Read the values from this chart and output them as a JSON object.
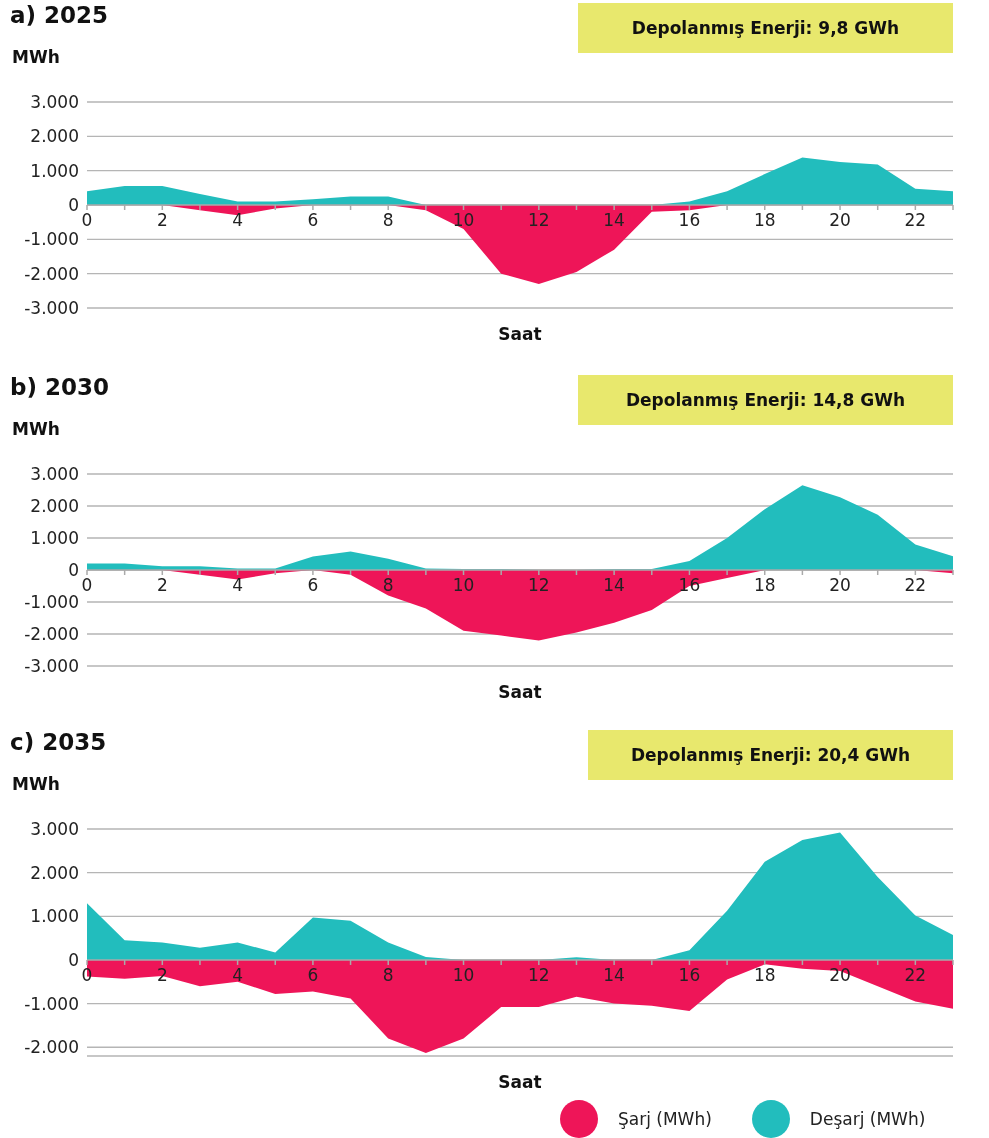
{
  "chart_data": [
    {
      "type": "area",
      "title": "a) 2025",
      "ylabel": "MWh",
      "xlabel": "Saat",
      "annotations": [
        "Depolanmış Enerji: 9,8 GWh"
      ],
      "x": [
        0,
        1,
        2,
        3,
        4,
        5,
        6,
        7,
        8,
        9,
        10,
        11,
        12,
        13,
        14,
        15,
        16,
        17,
        18,
        19,
        20,
        21,
        22,
        23
      ],
      "series": [
        {
          "color": "#ee1558",
          "values": [
            0,
            0,
            0,
            -150,
            -300,
            -100,
            0,
            0,
            0,
            -150,
            -700,
            -2000,
            -2300,
            -1950,
            -1300,
            -200,
            -150,
            0,
            0,
            0,
            0,
            0,
            0,
            0
          ]
        },
        {
          "color": "#22bdbd",
          "values": [
            400,
            550,
            550,
            320,
            100,
            100,
            170,
            250,
            250,
            0,
            0,
            0,
            0,
            0,
            0,
            0,
            100,
            400,
            900,
            1380,
            1250,
            1180,
            470,
            400
          ]
        }
      ],
      "xlim": [
        0,
        23
      ],
      "xticks": [
        0,
        {
          "value": 1,
          "label": null
        },
        2,
        {
          "value": 3,
          "label": null
        },
        4,
        {
          "value": 5,
          "label": null
        },
        6,
        {
          "value": 7,
          "label": null
        },
        8,
        {
          "value": 9,
          "label": null
        },
        10,
        {
          "value": 11,
          "label": null
        },
        12,
        {
          "value": 13,
          "label": null
        },
        14,
        {
          "value": 15,
          "label": null
        },
        16,
        {
          "value": 17,
          "label": null
        },
        18,
        {
          "value": 19,
          "label": null
        },
        20,
        {
          "value": 21,
          "label": null
        },
        22,
        {
          "value": 23,
          "label": null
        }
      ],
      "ylim": [
        -3000,
        3000
      ],
      "yticks": [
        {
          "value": -3000,
          "label": "-3.000"
        },
        {
          "value": -2000,
          "label": "-2.000"
        },
        {
          "value": -1000,
          "label": "-1.000"
        },
        {
          "value": 0,
          "label": "0"
        },
        {
          "value": 1000,
          "label": "1.000"
        },
        {
          "value": 2000,
          "label": "2.000"
        },
        {
          "value": 3000,
          "label": "3.000"
        }
      ],
      "grid": "y"
    },
    {
      "type": "area",
      "title": "b) 2030",
      "ylabel": "MWh",
      "xlabel": "Saat",
      "annotations": [
        "Depolanmış Enerji: 14,8 GWh"
      ],
      "x": [
        0,
        1,
        2,
        3,
        4,
        5,
        6,
        7,
        8,
        9,
        10,
        11,
        12,
        13,
        14,
        15,
        16,
        17,
        18,
        19,
        20,
        21,
        22,
        23
      ],
      "series": [
        {
          "color": "#ee1558",
          "values": [
            0,
            0,
            0,
            -150,
            -300,
            -100,
            0,
            -150,
            -800,
            -1200,
            -1900,
            -2050,
            -2200,
            -1950,
            -1650,
            -1250,
            -500,
            -250,
            0,
            0,
            0,
            0,
            0,
            -100
          ]
        },
        {
          "color": "#22bdbd",
          "values": [
            200,
            200,
            120,
            120,
            50,
            50,
            420,
            580,
            350,
            50,
            30,
            30,
            0,
            0,
            30,
            30,
            280,
            1000,
            1900,
            2650,
            2270,
            1730,
            800,
            430
          ]
        }
      ],
      "xlim": [
        0,
        23
      ],
      "xticks": [
        0,
        {
          "value": 1,
          "label": null
        },
        2,
        {
          "value": 3,
          "label": null
        },
        4,
        {
          "value": 5,
          "label": null
        },
        6,
        {
          "value": 7,
          "label": null
        },
        8,
        {
          "value": 9,
          "label": null
        },
        10,
        {
          "value": 11,
          "label": null
        },
        12,
        {
          "value": 13,
          "label": null
        },
        14,
        {
          "value": 15,
          "label": null
        },
        16,
        {
          "value": 17,
          "label": null
        },
        18,
        {
          "value": 19,
          "label": null
        },
        20,
        {
          "value": 21,
          "label": null
        },
        22,
        {
          "value": 23,
          "label": null
        }
      ],
      "ylim": [
        -3000,
        3000
      ],
      "yticks": [
        {
          "value": -3000,
          "label": "-3.000"
        },
        {
          "value": -2000,
          "label": "-2.000"
        },
        {
          "value": -1000,
          "label": "-1.000"
        },
        {
          "value": 0,
          "label": "0"
        },
        {
          "value": 1000,
          "label": "1.000"
        },
        {
          "value": 2000,
          "label": "2.000"
        },
        {
          "value": 3000,
          "label": "3.000"
        }
      ],
      "grid": "y"
    },
    {
      "type": "area",
      "title": "c) 2035",
      "ylabel": "MWh",
      "xlabel": "Saat",
      "annotations": [
        "Depolanmış Enerji: 20,4 GWh"
      ],
      "x": [
        0,
        1,
        2,
        3,
        4,
        5,
        6,
        7,
        8,
        9,
        10,
        11,
        12,
        13,
        14,
        15,
        16,
        17,
        18,
        19,
        20,
        21,
        22,
        23
      ],
      "series": [
        {
          "name": "Şarj (MWh)",
          "color": "#ee1558",
          "values": [
            -380,
            -430,
            -370,
            -600,
            -500,
            -780,
            -720,
            -880,
            -1800,
            -2130,
            -1800,
            -1080,
            -1080,
            -840,
            -1000,
            -1050,
            -1170,
            -450,
            -100,
            -200,
            -250,
            -600,
            -950,
            -1120
          ]
        },
        {
          "name": "Deşarj (MWh)",
          "color": "#22bdbd",
          "values": [
            1300,
            450,
            400,
            280,
            400,
            170,
            970,
            900,
            400,
            70,
            0,
            0,
            0,
            60,
            0,
            0,
            220,
            1130,
            2250,
            2750,
            2920,
            1900,
            1020,
            570
          ]
        }
      ],
      "xlim": [
        0,
        23
      ],
      "xticks": [
        0,
        {
          "value": 1,
          "label": null
        },
        2,
        {
          "value": 3,
          "label": null
        },
        4,
        {
          "value": 5,
          "label": null
        },
        6,
        {
          "value": 7,
          "label": null
        },
        8,
        {
          "value": 9,
          "label": null
        },
        10,
        {
          "value": 11,
          "label": null
        },
        12,
        {
          "value": 13,
          "label": null
        },
        14,
        {
          "value": 15,
          "label": null
        },
        16,
        {
          "value": 17,
          "label": null
        },
        18,
        {
          "value": 19,
          "label": null
        },
        20,
        {
          "value": 21,
          "label": null
        },
        22,
        {
          "value": 23,
          "label": null
        }
      ],
      "ylim": [
        -2200,
        3000
      ],
      "yticks": [
        {
          "value": -2000,
          "label": "-2.000"
        },
        {
          "value": -1000,
          "label": "-1.000"
        },
        {
          "value": 0,
          "label": "0"
        },
        {
          "value": 1000,
          "label": "1.000"
        },
        {
          "value": 2000,
          "label": "2.000"
        },
        {
          "value": 3000,
          "label": "3.000"
        }
      ],
      "grid": "y",
      "legend": "bottom right"
    }
  ]
}
